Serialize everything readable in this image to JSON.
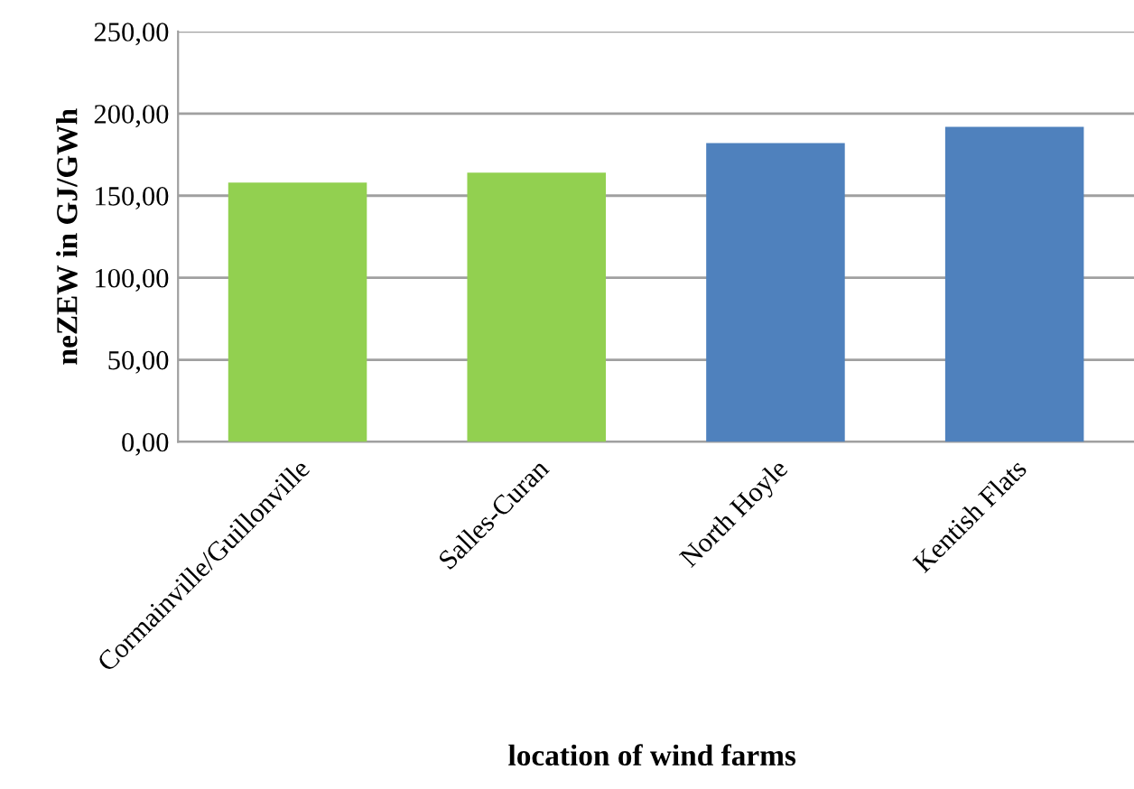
{
  "chart_data": {
    "type": "bar",
    "xlabel": "location of wind farms",
    "ylabel": "neZEW in GJ/GWh",
    "categories": [
      "Cormainville/Guillonville",
      "Salles-Curan",
      "North Hoyle",
      "Kentish Flats"
    ],
    "values": [
      158,
      164,
      182,
      192
    ],
    "colors": [
      "#92d050",
      "#92d050",
      "#4f81bd",
      "#4f81bd"
    ],
    "ylim": [
      0,
      250
    ],
    "yticks": [
      {
        "value": 0,
        "label": "0,00"
      },
      {
        "value": 50,
        "label": "50,00"
      },
      {
        "value": 100,
        "label": "100,00"
      },
      {
        "value": 150,
        "label": "150,00"
      },
      {
        "value": 200,
        "label": "200,00"
      },
      {
        "value": 250,
        "label": "250,00"
      }
    ],
    "grid": "y",
    "legend": false
  }
}
